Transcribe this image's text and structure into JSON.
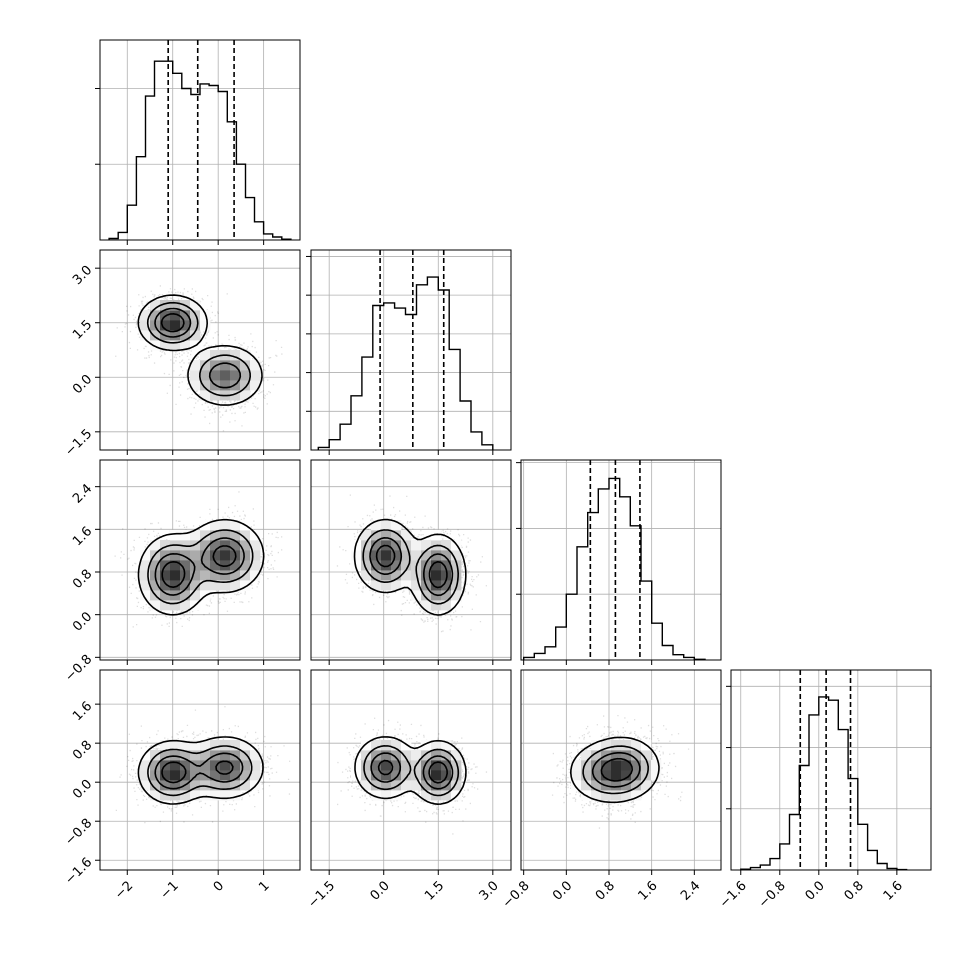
{
  "chart_data": {
    "type": "corner",
    "grid": true,
    "colors": {
      "hist": "#000000",
      "samples": "#000000",
      "contours": "#000000",
      "grid": "#b0b0b0"
    },
    "variables": [
      {
        "range": [
          -2.6,
          1.8
        ],
        "ticks": [
          -2,
          -1,
          0,
          1
        ],
        "tick_labels": [
          "−2",
          "−1",
          "0",
          "1"
        ],
        "quantiles": [
          -1.1,
          -0.45,
          0.35
        ],
        "hist_max": 1.32,
        "hist_yticks": [
          0.5,
          1.0
        ],
        "hist": {
          "edges": [
            -2.4,
            -2.2,
            -2.0,
            -1.8,
            -1.6,
            -1.4,
            -1.2,
            -1.0,
            -0.8,
            -0.6,
            -0.4,
            -0.2,
            0.0,
            0.2,
            0.4,
            0.6,
            0.8,
            1.0,
            1.2,
            1.4,
            1.6
          ],
          "values": [
            0.01,
            0.05,
            0.23,
            0.55,
            0.95,
            1.18,
            1.18,
            1.1,
            1.0,
            0.96,
            1.03,
            1.02,
            0.98,
            0.78,
            0.5,
            0.28,
            0.12,
            0.04,
            0.02,
            0.005
          ]
        }
      },
      {
        "range": [
          -2.0,
          3.5
        ],
        "ticks": [
          -1.5,
          0.0,
          1.5,
          3.0
        ],
        "tick_labels": [
          "−1.5",
          "0.0",
          "1.5",
          "3.0"
        ],
        "quantiles": [
          -0.1,
          0.8,
          1.65
        ],
        "hist_max": 1.55,
        "hist_yticks": [
          0.3,
          0.6,
          0.9,
          1.2,
          1.5
        ],
        "hist": {
          "edges": [
            -1.8,
            -1.5,
            -1.2,
            -0.9,
            -0.6,
            -0.3,
            0.0,
            0.3,
            0.6,
            0.9,
            1.2,
            1.5,
            1.8,
            2.1,
            2.4,
            2.7,
            3.0
          ],
          "values": [
            0.02,
            0.08,
            0.2,
            0.42,
            0.72,
            1.12,
            1.14,
            1.1,
            1.05,
            1.28,
            1.34,
            1.24,
            0.78,
            0.38,
            0.14,
            0.04
          ]
        }
      },
      {
        "range": [
          -0.85,
          2.9
        ],
        "ticks": [
          -0.8,
          0.0,
          0.8,
          1.6,
          2.4
        ],
        "tick_labels": [
          "−0.8",
          "0.0",
          "0.8",
          "1.6",
          "2.4"
        ],
        "quantiles": [
          0.45,
          0.92,
          1.38
        ],
        "hist_max": 1.52,
        "hist_yticks": [
          0.5,
          1.0,
          1.5
        ],
        "hist": {
          "edges": [
            -0.8,
            -0.6,
            -0.4,
            -0.2,
            0.0,
            0.2,
            0.4,
            0.6,
            0.8,
            1.0,
            1.2,
            1.4,
            1.6,
            1.8,
            2.0,
            2.2,
            2.4,
            2.6
          ],
          "values": [
            0.02,
            0.05,
            0.1,
            0.25,
            0.5,
            0.86,
            1.12,
            1.3,
            1.38,
            1.24,
            1.02,
            0.6,
            0.28,
            0.11,
            0.04,
            0.02,
            0.005
          ]
        }
      },
      {
        "range": [
          -1.8,
          2.3
        ],
        "ticks": [
          -1.6,
          -0.8,
          0.0,
          0.8,
          1.6
        ],
        "tick_labels": [
          "−1.6",
          "−0.8",
          "0.0",
          "0.8",
          "1.6"
        ],
        "quantiles": [
          -0.38,
          0.15,
          0.65
        ],
        "hist_max": 2.45,
        "hist_yticks": [
          0.75,
          1.5,
          2.25
        ],
        "hist": {
          "edges": [
            -1.6,
            -1.4,
            -1.2,
            -1.0,
            -0.8,
            -0.6,
            -0.4,
            -0.2,
            0.0,
            0.2,
            0.4,
            0.6,
            0.8,
            1.0,
            1.2,
            1.4,
            1.6,
            1.8
          ],
          "values": [
            0.01,
            0.03,
            0.06,
            0.14,
            0.32,
            0.68,
            1.28,
            1.9,
            2.12,
            2.08,
            1.72,
            1.12,
            0.56,
            0.24,
            0.08,
            0.02,
            0.005
          ]
        }
      }
    ],
    "components": [
      {
        "weight": 0.5,
        "mean": [
          -1.0,
          1.5,
          0.75,
          0.2
        ],
        "sd": [
          0.35,
          0.35,
          0.35,
          0.3
        ]
      },
      {
        "weight": 0.5,
        "mean": [
          0.15,
          0.05,
          1.1,
          0.3
        ],
        "sd": [
          0.4,
          0.4,
          0.32,
          0.3
        ]
      }
    ]
  }
}
